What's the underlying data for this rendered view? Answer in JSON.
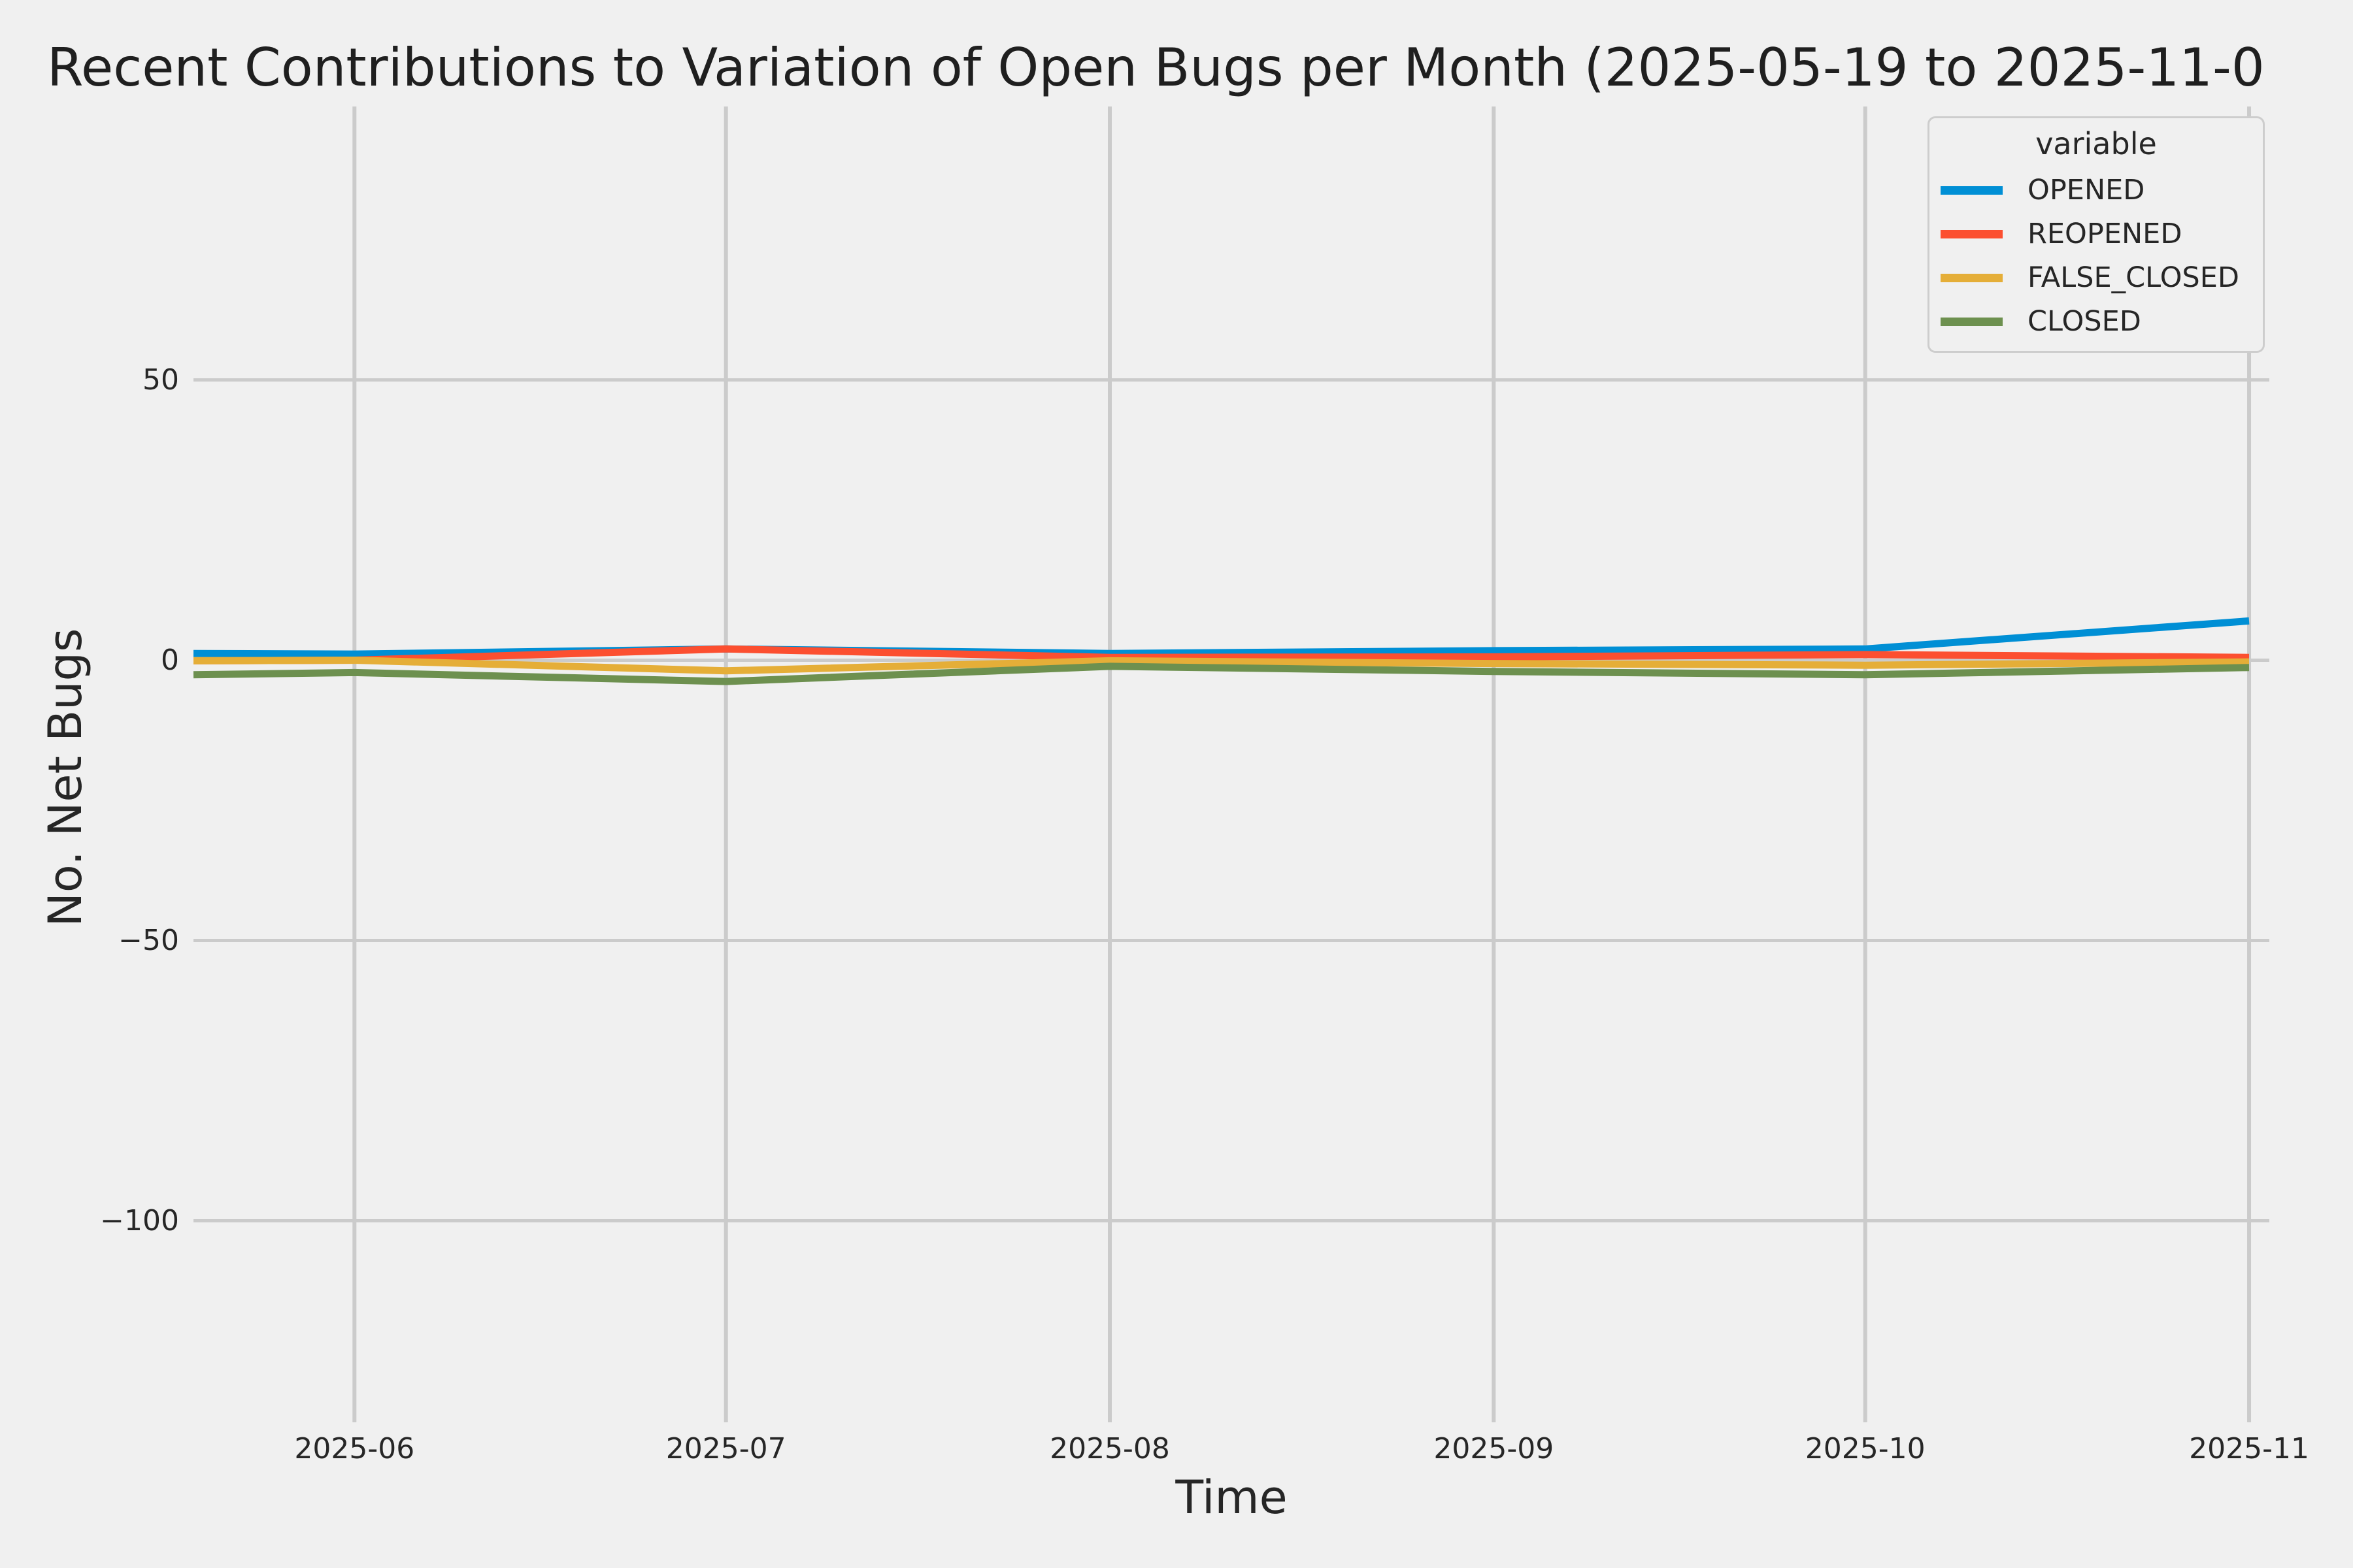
{
  "title": "Recent Contributions to Variation of Open Bugs per Month (2025-05-19 to 2025-11-0",
  "chart_data": {
    "type": "line",
    "x": [
      "2025-05-19",
      "2025-06-01",
      "2025-07-01",
      "2025-08-01",
      "2025-09-01",
      "2025-10-01",
      "2025-11-01"
    ],
    "series": [
      {
        "name": "OPENED",
        "color": "#008fd5",
        "values": [
          1.2,
          1.1,
          2.0,
          1.2,
          1.7,
          2.0,
          7.0
        ]
      },
      {
        "name": "REOPENED",
        "color": "#fc4f30",
        "values": [
          -0.1,
          0.0,
          2.0,
          0.5,
          0.6,
          1.0,
          0.5
        ]
      },
      {
        "name": "FALSE_CLOSED",
        "color": "#e5ae38",
        "values": [
          -0.1,
          0.0,
          -1.9,
          -0.1,
          -0.6,
          -0.9,
          -0.3
        ]
      },
      {
        "name": "CLOSED",
        "color": "#6d904f",
        "values": [
          -2.6,
          -2.2,
          -3.8,
          -1.1,
          -2.0,
          -2.6,
          -1.3
        ]
      }
    ],
    "xlabel": "Time",
    "ylabel": "No. Net Bugs",
    "x_tick_labels": [
      "2025-06",
      "2025-07",
      "2025-08",
      "2025-09",
      "2025-10",
      "2025-11"
    ],
    "y_ticks": [
      50,
      0,
      -50,
      -100
    ],
    "ylim": [
      -136,
      98
    ],
    "legend_title": "variable",
    "legend_position": "upper right",
    "grid": true,
    "background_color": "#f0f0f0",
    "grid_color": "#cbcbcb",
    "text_color": "#262626"
  }
}
